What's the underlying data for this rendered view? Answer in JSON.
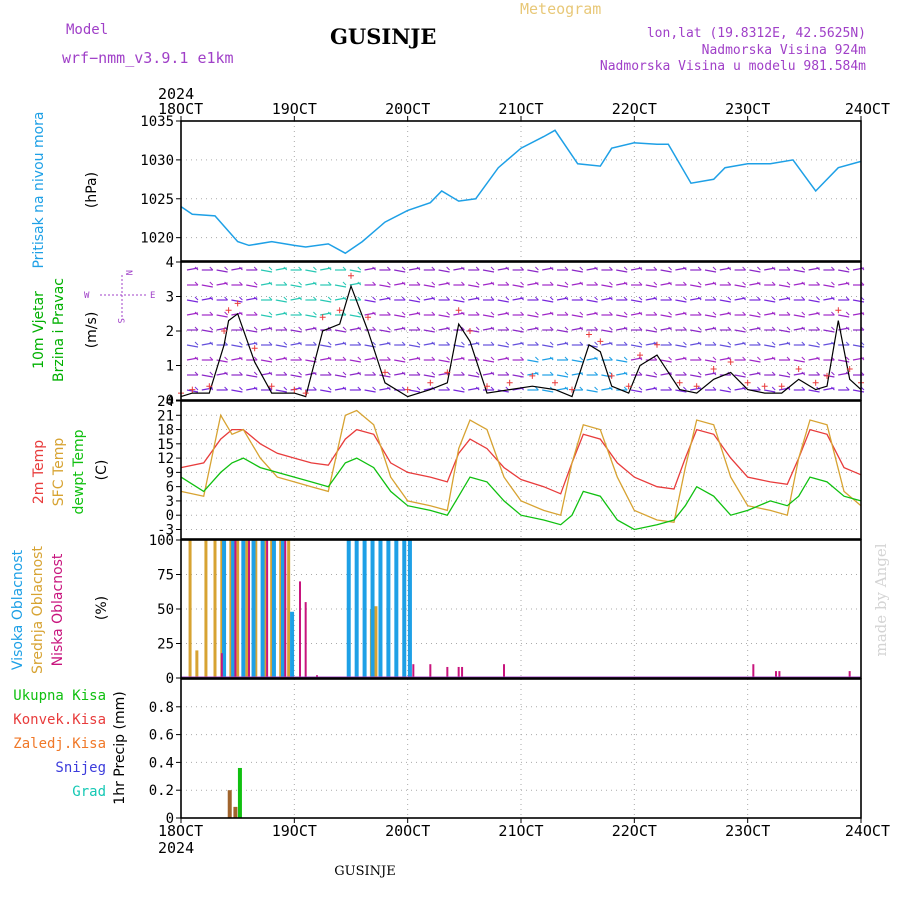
{
  "header": {
    "model_label": "Model",
    "model_name": "wrf−nmm_v3.9.1  e1km",
    "title": "GUSINJE",
    "meteogram": "Meteogram",
    "lonlat": "lon,lat (19.8312E, 42.5625N)",
    "elevation": "Nadmorska Visina 924m",
    "model_elevation": "Nadmorska Visina u modelu 981.584m"
  },
  "footer": {
    "station": "GUSINJE",
    "credit": "made by Angel"
  },
  "time_axis": {
    "year": "2024",
    "ticks": [
      "18OCT",
      "19OCT",
      "20OCT",
      "21OCT",
      "22OCT",
      "23OCT",
      "24OCT"
    ]
  },
  "legend_vert": {
    "pressure": [
      {
        "text": "Pritisak na nivou mora",
        "color": "#1ea0e6"
      },
      {
        "text": "(hPa)",
        "color": "#000000"
      }
    ],
    "wind": [
      {
        "text": "10m Vjetar",
        "color": "#00b000"
      },
      {
        "text": "Brzina i Pravac",
        "color": "#00b000"
      },
      {
        "text": "(m/s)",
        "color": "#000000"
      }
    ],
    "temp": [
      {
        "text": "2m Temp",
        "color": "#e83c3c"
      },
      {
        "text": "SFC Temp",
        "color": "#d7a332"
      },
      {
        "text": "dewpt Temp",
        "color": "#10c010"
      },
      {
        "text": "(C)",
        "color": "#000000"
      }
    ],
    "cloud": [
      {
        "text": "Visoka Oblacnost",
        "color": "#1ea0e6"
      },
      {
        "text": "Srednja Oblacnost",
        "color": "#d7a332"
      },
      {
        "text": "Niska Oblacnost",
        "color": "#c8147d"
      },
      {
        "text": "(%)",
        "color": "#000000"
      }
    ],
    "precip": [
      {
        "text": "1hr Precip (mm)",
        "color": "#000000"
      }
    ]
  },
  "compass": {
    "w": "W",
    "e": "E",
    "n": "N",
    "s": "S"
  },
  "precip_legend": [
    {
      "text": "Ukupna Kisa",
      "color": "#10c010"
    },
    {
      "text": "Konvek.Kisa",
      "color": "#e83c3c"
    },
    {
      "text": "Zaledj.Kisa",
      "color": "#f07828"
    },
    {
      "text": "Snijeg",
      "color": "#3c3cdc"
    },
    {
      "text": "Grad",
      "color": "#14c8b4"
    }
  ],
  "colors": {
    "pressure": "#1ea0e6",
    "t2m": "#e83c3c",
    "tsfc": "#d7a332",
    "dewpt": "#10c010",
    "cloud_high": "#1ea0e6",
    "cloud_mid": "#d7a332",
    "cloud_low": "#c8147d",
    "wind_speed": "#000000",
    "wind_max": "#e83c3c"
  },
  "chart_data": [
    {
      "type": "line",
      "name": "pressure",
      "ylim": [
        1017,
        1035
      ],
      "yticks": [
        1020,
        1025,
        1030,
        1035
      ],
      "x": [
        0,
        0.1,
        0.3,
        0.5,
        0.6,
        0.8,
        1,
        1.1,
        1.3,
        1.45,
        1.6,
        1.8,
        2,
        2.2,
        2.3,
        2.45,
        2.6,
        2.8,
        3,
        3.2,
        3.3,
        3.5,
        3.7,
        3.8,
        4,
        4.2,
        4.3,
        4.5,
        4.7,
        4.8,
        5,
        5.2,
        5.4,
        5.6,
        5.8,
        6
      ],
      "values": [
        1024,
        1023,
        1022.8,
        1019.5,
        1019,
        1019.5,
        1019,
        1018.8,
        1019.2,
        1018,
        1019.5,
        1022,
        1023.5,
        1024.5,
        1026,
        1024.7,
        1025,
        1029,
        1031.5,
        1033,
        1033.8,
        1029.5,
        1029.2,
        1031.5,
        1032.2,
        1032,
        1032,
        1027,
        1027.5,
        1029,
        1029.5,
        1029.5,
        1030,
        1026,
        1029,
        1029.8
      ]
    },
    {
      "type": "line",
      "name": "wind",
      "ylim": [
        0,
        4
      ],
      "yticks": [
        0,
        1,
        2,
        3,
        4
      ],
      "x": [
        0,
        0.1,
        0.25,
        0.38,
        0.42,
        0.5,
        0.65,
        0.8,
        1,
        1.1,
        1.25,
        1.4,
        1.5,
        1.65,
        1.8,
        2,
        2.2,
        2.35,
        2.45,
        2.55,
        2.7,
        2.9,
        3.1,
        3.3,
        3.45,
        3.6,
        3.7,
        3.8,
        3.95,
        4.05,
        4.2,
        4.4,
        4.55,
        4.7,
        4.85,
        5,
        5.15,
        5.3,
        5.45,
        5.6,
        5.7,
        5.8,
        5.9,
        6
      ],
      "values": [
        0.1,
        0.2,
        0.2,
        1.6,
        2.3,
        2.5,
        1.1,
        0.2,
        0.2,
        0.1,
        2.0,
        2.2,
        3.3,
        2.0,
        0.5,
        0.1,
        0.3,
        0.5,
        2.2,
        1.7,
        0.2,
        0.3,
        0.4,
        0.3,
        0.1,
        1.6,
        1.4,
        0.4,
        0.2,
        1.0,
        1.3,
        0.3,
        0.2,
        0.6,
        0.8,
        0.3,
        0.2,
        0.2,
        0.6,
        0.3,
        0.4,
        2.3,
        0.6,
        0.3
      ],
      "max_values": [
        0.2,
        0.3,
        0.4,
        2.0,
        2.6,
        2.8,
        1.5,
        0.4,
        0.3,
        0.2,
        2.4,
        2.6,
        3.6,
        2.4,
        0.8,
        0.3,
        0.5,
        0.8,
        2.6,
        2.0,
        0.4,
        0.5,
        0.7,
        0.5,
        0.3,
        1.9,
        1.7,
        0.7,
        0.4,
        1.3,
        1.6,
        0.5,
        0.4,
        0.9,
        1.1,
        0.5,
        0.4,
        0.4,
        0.9,
        0.5,
        0.7,
        2.6,
        0.9,
        0.5
      ]
    },
    {
      "type": "line",
      "name": "temperature",
      "ylim": [
        -5,
        24
      ],
      "yticks": [
        -3,
        0,
        3,
        6,
        9,
        12,
        15,
        18,
        21,
        24
      ],
      "x": [
        0,
        0.2,
        0.35,
        0.45,
        0.55,
        0.7,
        0.85,
        1,
        1.15,
        1.3,
        1.45,
        1.55,
        1.7,
        1.85,
        2,
        2.2,
        2.35,
        2.45,
        2.55,
        2.7,
        2.85,
        3,
        3.2,
        3.35,
        3.45,
        3.55,
        3.7,
        3.85,
        4,
        4.2,
        4.35,
        4.45,
        4.55,
        4.7,
        4.85,
        5,
        5.2,
        5.35,
        5.45,
        5.55,
        5.7,
        5.85,
        6
      ],
      "t2m": [
        10,
        11,
        16,
        18,
        18,
        15,
        13,
        12,
        11,
        10.5,
        16,
        18,
        17,
        11,
        9,
        8,
        7,
        13,
        16,
        14,
        10,
        7.5,
        6,
        4.5,
        11,
        17,
        16,
        11,
        8,
        6,
        5.5,
        12,
        18,
        17,
        12,
        8,
        7,
        6.5,
        12,
        18,
        17,
        10,
        8.5
      ],
      "tsfc": [
        5,
        4,
        21,
        17,
        18,
        12,
        8,
        7,
        6,
        5,
        21,
        22,
        19,
        8,
        3,
        2,
        1,
        14,
        20,
        18,
        8,
        3,
        1,
        0,
        11,
        19,
        18,
        8,
        1,
        -1,
        -1.5,
        10,
        20,
        19,
        8,
        2,
        1,
        0,
        12,
        20,
        19,
        5,
        2
      ],
      "dewpt": [
        8,
        5,
        9,
        11,
        12,
        10,
        9,
        8,
        7,
        6,
        11,
        12,
        10,
        5,
        2,
        1,
        0,
        4,
        8,
        7,
        3,
        0,
        -1,
        -2,
        0,
        5,
        4,
        -1,
        -3,
        -2,
        -1,
        2,
        6,
        4,
        0,
        1,
        3,
        2,
        4,
        8,
        7,
        4,
        3
      ]
    },
    {
      "type": "bar",
      "name": "cloud",
      "ylim": [
        0,
        100
      ],
      "yticks": [
        0,
        25,
        50,
        75,
        100
      ],
      "high": [
        [
          0.38,
          100
        ],
        [
          0.46,
          100
        ],
        [
          0.55,
          100
        ],
        [
          0.64,
          100
        ],
        [
          0.72,
          100
        ],
        [
          0.82,
          100
        ],
        [
          0.9,
          100
        ],
        [
          0.98,
          48
        ],
        [
          1.48,
          100
        ],
        [
          1.55,
          100
        ],
        [
          1.62,
          100
        ],
        [
          1.69,
          100
        ],
        [
          1.76,
          100
        ],
        [
          1.83,
          100
        ],
        [
          1.9,
          100
        ],
        [
          1.97,
          100
        ],
        [
          2.02,
          100
        ]
      ],
      "mid": [
        [
          0.08,
          100
        ],
        [
          0.14,
          20
        ],
        [
          0.22,
          100
        ],
        [
          0.3,
          100
        ],
        [
          0.36,
          100
        ],
        [
          0.44,
          100
        ],
        [
          0.5,
          100
        ],
        [
          0.58,
          100
        ],
        [
          0.66,
          100
        ],
        [
          0.74,
          100
        ],
        [
          0.8,
          100
        ],
        [
          0.88,
          100
        ],
        [
          0.95,
          100
        ],
        [
          1.62,
          100
        ],
        [
          1.68,
          50
        ],
        [
          1.72,
          52
        ]
      ],
      "low": [
        [
          0.36,
          18
        ],
        [
          0.48,
          100
        ],
        [
          0.6,
          100
        ],
        [
          0.76,
          100
        ],
        [
          0.92,
          100
        ],
        [
          1.05,
          70
        ],
        [
          1.1,
          55
        ],
        [
          1.2,
          2
        ],
        [
          2.05,
          10
        ],
        [
          2.2,
          10
        ],
        [
          2.35,
          8
        ],
        [
          2.45,
          8
        ],
        [
          2.48,
          8
        ],
        [
          2.85,
          10
        ],
        [
          5.05,
          10
        ],
        [
          5.25,
          5
        ],
        [
          5.28,
          5
        ],
        [
          5.9,
          5
        ]
      ]
    },
    {
      "type": "bar",
      "name": "precip_1hr",
      "ylim": [
        0,
        1
      ],
      "yticks": [
        0,
        0.2,
        0.4,
        0.6,
        0.8
      ],
      "convective": [
        [
          0.43,
          0.2
        ],
        [
          0.48,
          0.08
        ]
      ],
      "total": [
        [
          0.52,
          0.36
        ]
      ]
    }
  ]
}
